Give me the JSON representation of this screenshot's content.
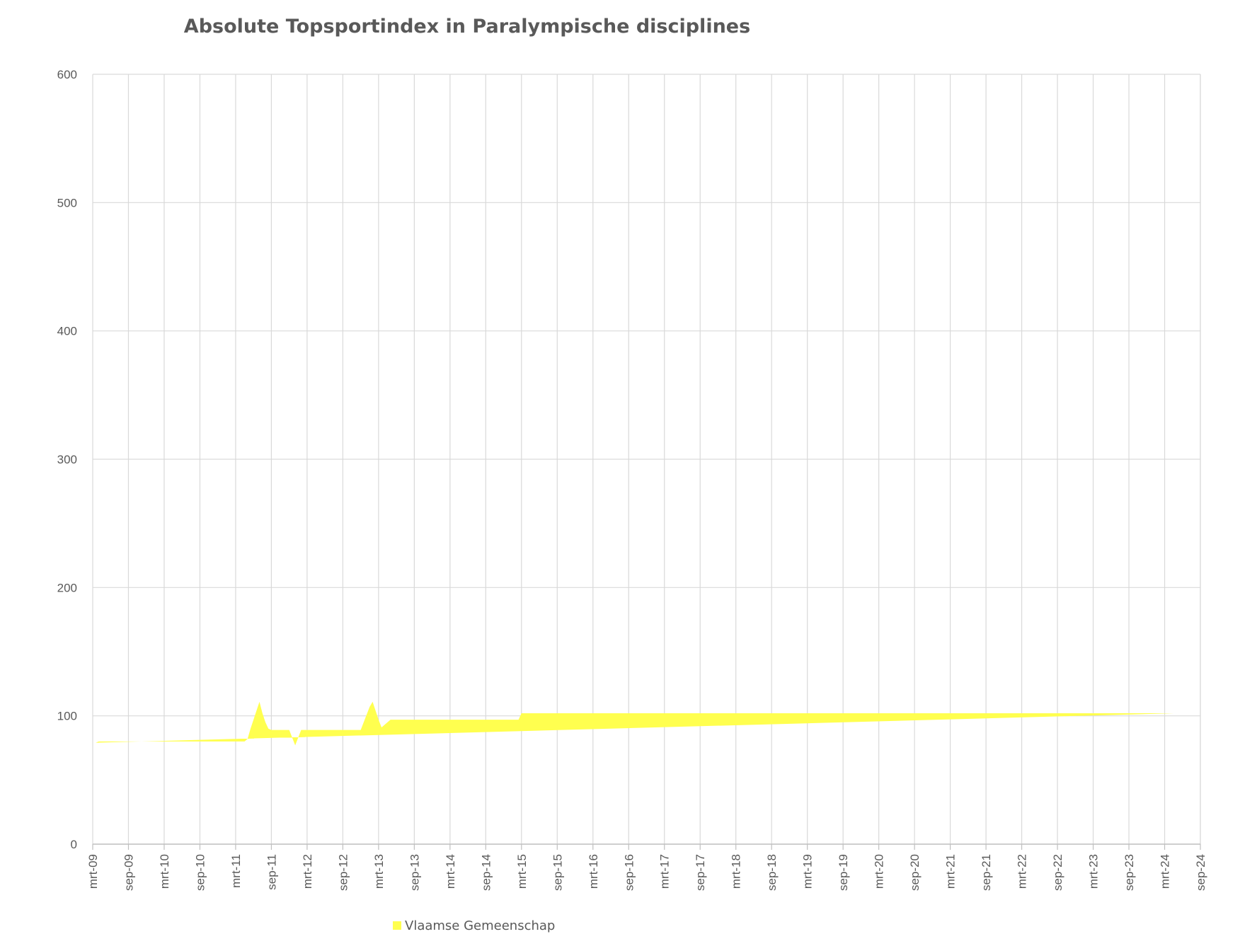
{
  "chart_data": {
    "type": "area",
    "stacked": true,
    "title": "Absolute Topsportindex in Paralympische disciplines",
    "ylim": [
      0,
      600
    ],
    "yticks": [
      0,
      100,
      200,
      300,
      400,
      500,
      600
    ],
    "grid": true,
    "legend_position": "bottom",
    "xtick_labels": [
      "mrt-09",
      "sep-09",
      "mrt-10",
      "sep-10",
      "mrt-11",
      "sep-11",
      "mrt-12",
      "sep-12",
      "mrt-13",
      "sep-13",
      "mrt-14",
      "sep-14",
      "mrt-15",
      "sep-15",
      "mrt-16",
      "sep-16",
      "mrt-17",
      "sep-17",
      "mrt-18",
      "sep-18",
      "mrt-19",
      "sep-19",
      "mrt-20",
      "sep-20",
      "mrt-21",
      "sep-21",
      "mrt-22",
      "sep-22",
      "mrt-23",
      "sep-23",
      "mrt-24",
      "sep-24"
    ],
    "x_months": [
      0,
      0.5,
      1,
      1.5,
      2,
      2.5,
      3,
      3.5,
      4,
      4.5,
      5,
      5.5,
      6,
      6.5,
      7,
      7.5,
      8,
      8.5,
      9,
      9.5,
      10,
      10.5,
      11,
      11.5,
      12,
      12.5,
      13,
      13.5,
      14,
      14.5,
      15,
      15.5,
      16,
      16.5,
      17,
      17.5,
      18,
      18.5,
      19,
      19.5,
      20,
      20.5,
      21,
      21.5,
      22,
      22.5,
      23,
      23.5,
      24,
      24.5,
      25,
      25.5,
      26,
      26.5,
      27,
      27.5,
      28,
      28.5,
      29,
      29.5,
      30,
      30.5,
      31,
      31.5,
      32,
      32.5,
      33,
      33.5,
      34,
      34.5,
      35,
      35.5,
      36,
      36.5,
      37,
      37.5,
      38,
      38.5,
      39,
      39.5,
      40,
      40.5,
      41,
      41.5,
      42,
      42.5,
      43,
      43.5,
      44,
      44.5,
      45,
      45.5,
      46,
      46.5,
      47,
      47.5,
      48,
      48.5,
      49,
      49.5,
      50,
      50.5,
      51,
      51.5,
      52,
      52.5,
      53,
      53.5,
      54,
      54.5,
      55,
      55.5,
      56,
      56.5,
      57,
      57.5,
      58,
      58.5,
      59,
      59.5,
      60,
      60.5,
      61,
      61.5,
      62,
      62.5,
      63,
      63.5,
      64,
      64.5,
      65,
      65.5,
      66,
      66.5,
      67,
      67.5,
      68,
      68.5,
      69,
      69.5,
      70,
      70.5,
      71,
      71.5,
      72,
      72.5,
      73,
      73.5,
      74,
      74.5,
      75,
      75.5,
      76,
      76.5,
      77,
      77.5,
      78,
      78.5,
      79,
      79.5,
      80,
      80.5,
      81,
      81.5,
      82,
      82.5,
      83,
      83.5,
      84,
      84.5,
      85,
      85.5,
      86,
      86.5,
      87,
      87.5,
      88,
      88.5,
      89,
      89.5,
      90,
      90.5,
      91,
      91.5,
      92,
      92.5,
      93,
      93.5,
      94,
      94.5,
      95,
      95.5,
      96,
      96.5,
      97,
      97.5,
      98,
      98.5,
      99,
      99.5,
      100,
      100.5,
      101,
      101.5,
      102,
      102.5,
      103,
      103.5,
      104,
      104.5,
      105,
      105.5,
      106,
      106.5,
      107,
      107.5,
      108,
      108.5,
      109,
      109.5,
      110,
      110.5,
      111,
      111.5,
      112,
      112.5,
      113,
      113.5,
      114,
      114.5,
      115,
      115.5,
      116,
      116.5,
      117,
      117.5,
      118,
      118.5,
      119,
      119.5,
      120,
      120.5,
      121,
      121.5,
      122,
      122.5,
      123,
      123.5,
      124,
      124.5,
      125,
      125.5,
      126,
      126.5,
      127,
      127.5,
      128,
      128.5,
      129,
      129.5,
      130,
      130.5,
      131,
      131.5,
      132,
      132.5,
      133,
      133.5,
      134,
      134.5,
      135,
      135.5,
      136,
      136.5,
      137,
      137.5,
      138,
      138.5,
      139,
      139.5,
      140,
      140.5,
      141,
      141.5,
      142,
      142.5,
      143,
      143.5,
      144,
      144.5,
      145,
      145.5,
      146,
      146.5,
      147,
      147.5,
      148,
      148.5,
      149,
      149.5,
      150,
      150.5,
      151,
      151.5,
      152,
      152.5,
      153,
      153.5,
      154,
      154.5,
      155,
      155.5,
      156,
      156.5,
      157,
      157.5,
      158,
      158.5,
      159,
      159.5,
      160,
      160.5,
      161,
      161.5,
      162,
      162.5,
      163,
      163.5,
      164,
      164.5,
      165,
      165.5,
      166,
      166.5,
      167,
      167.5,
      168,
      168.5,
      169,
      169.5,
      170,
      170.5,
      171,
      171.5,
      172,
      172.5,
      173,
      173.5,
      174,
      174.5,
      175,
      175.5,
      176,
      176.5,
      177,
      177.5,
      178,
      178.5,
      179,
      179.5,
      180,
      180.5,
      181,
      181.5,
      182,
      182.5,
      183,
      183.5,
      184,
      184.5,
      185,
      185.5,
      186,
      186.5,
      187,
      187.5,
      188,
      188.5,
      189,
      189.5,
      190,
      190.5,
      191,
      191.5,
      192
    ],
    "series": [
      {
        "name": "Vlaamse Gemeenschap",
        "color": "#FFFF4F",
        "values": [
          79,
          79,
          80,
          80,
          80,
          80,
          80,
          80,
          80,
          80,
          80,
          80,
          80,
          80,
          80,
          80,
          80,
          80,
          80,
          80,
          80,
          80,
          80,
          80,
          80,
          80,
          80,
          80,
          80,
          80,
          80,
          80,
          80,
          80,
          80,
          80,
          80,
          80,
          80,
          80,
          80,
          80,
          80,
          80,
          80,
          80,
          80,
          80,
          80,
          80,
          80,
          80,
          82,
          90,
          97,
          104,
          111,
          102,
          95,
          90,
          89,
          89,
          89,
          89,
          89,
          89,
          89,
          83,
          77,
          83,
          89,
          89,
          89,
          89,
          89,
          89,
          89,
          89,
          89,
          89,
          89,
          89,
          89,
          89,
          89,
          89,
          89,
          89,
          89,
          89,
          89,
          95,
          101,
          107,
          111,
          104,
          97,
          91,
          93,
          95,
          97,
          97,
          97,
          97,
          97,
          97,
          97,
          97,
          97,
          97,
          97,
          97,
          97,
          97,
          97,
          97,
          97,
          97,
          97,
          97,
          97,
          97,
          97,
          97,
          97,
          97,
          97,
          97,
          97,
          97,
          97,
          97,
          97,
          97,
          97,
          97,
          97,
          97,
          97,
          97,
          97,
          97,
          97,
          97,
          102,
          102,
          102,
          102,
          102,
          102,
          102,
          102,
          102,
          102,
          102,
          102,
          102,
          102,
          102,
          102,
          102,
          102,
          102,
          102,
          102,
          102,
          102,
          102,
          102,
          102,
          102,
          102,
          102,
          102,
          102,
          102,
          102,
          102,
          102,
          102,
          102,
          102,
          102,
          102,
          102,
          102,
          102,
          102,
          102,
          102,
          102,
          102,
          102,
          102,
          102,
          102,
          102,
          102,
          102,
          102,
          102,
          102,
          102,
          102,
          102,
          102,
          102,
          102,
          102,
          102,
          102,
          102,
          102,
          102,
          102,
          102,
          102,
          102,
          102,
          102,
          102,
          102,
          102,
          102,
          102,
          102,
          102,
          102,
          102,
          102,
          102,
          102,
          102,
          102,
          102,
          102,
          102,
          102,
          102,
          102,
          102,
          102,
          102,
          102,
          102,
          102,
          102,
          102,
          102,
          102,
          102,
          102,
          102,
          102,
          102,
          102,
          102,
          102,
          102,
          102,
          102,
          102,
          102,
          102,
          102,
          102,
          102,
          102,
          102,
          102,
          102,
          102,
          102,
          102,
          102,
          102,
          102,
          102,
          102,
          102,
          102,
          102,
          102,
          102,
          102,
          102,
          102,
          102,
          102,
          102,
          102,
          102,
          102,
          102,
          102,
          102,
          102,
          102,
          102,
          102,
          102,
          102,
          102,
          102,
          102,
          102,
          102,
          102,
          102,
          102,
          102,
          102,
          102,
          102,
          102,
          102,
          102,
          102,
          102,
          102,
          102,
          102,
          102,
          102,
          102,
          102,
          102,
          102,
          102,
          102,
          102,
          102,
          102,
          102,
          102,
          102,
          102,
          102,
          102,
          102,
          102,
          102,
          102,
          102,
          102,
          102,
          102,
          102,
          102,
          102,
          102,
          102,
          102,
          102,
          102,
          102,
          102,
          102,
          102,
          102,
          102,
          102,
          102,
          102
        ]
      }
    ]
  }
}
